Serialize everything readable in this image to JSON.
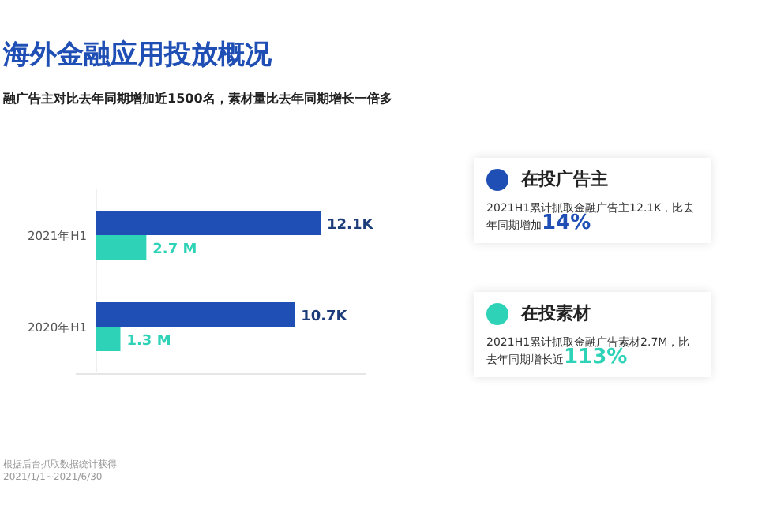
{
  "chart_data": {
    "type": "bar",
    "orientation": "horizontal",
    "title": "海外金融应用投放概况",
    "subtitle": "融广告主对比去年同期增加近1500名，素材量比去年同期增长一倍多",
    "categories": [
      "2021年H1",
      "2020年H1"
    ],
    "series": [
      {
        "name": "在投广告主",
        "color": "#1f4fb4",
        "values": [
          12.1,
          10.7
        ],
        "value_labels": [
          "12.1K",
          "10.7K"
        ]
      },
      {
        "name": "在投素材",
        "color": "#2ed3b7",
        "values": [
          2.7,
          1.3
        ],
        "value_labels": [
          "2.7 M",
          "1.3 M"
        ]
      }
    ],
    "legend": "right",
    "annotations": [
      "2021H1累计抓取金融广告主12.1K，比去年同期增加",
      "14%",
      "2021H1累计抓取金融广告素材2.7M，比去年同期增长近",
      "113%",
      "根据后台抓取数据统计获得",
      "2021/1/1~2021/6/30"
    ]
  }
}
